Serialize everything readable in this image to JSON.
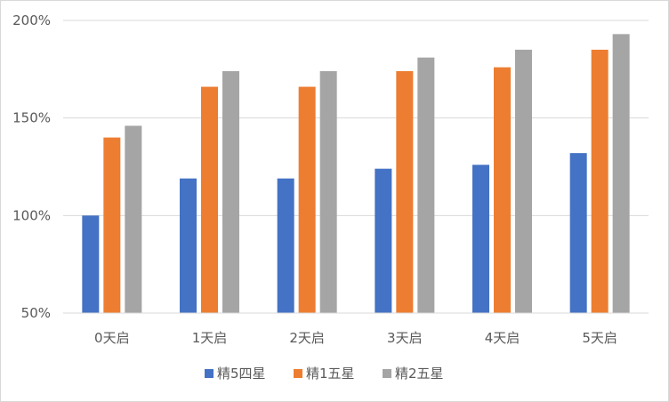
{
  "chart_data": {
    "type": "bar",
    "categories": [
      "0天启",
      "1天启",
      "2天启",
      "3天启",
      "4天启",
      "5天启"
    ],
    "series": [
      {
        "name": "精5四星",
        "color": "#4472c4",
        "values": [
          100,
          119,
          119,
          124,
          126,
          132
        ]
      },
      {
        "name": "精1五星",
        "color": "#ed7d31",
        "values": [
          140,
          166,
          166,
          174,
          176,
          185
        ]
      },
      {
        "name": "精2五星",
        "color": "#a5a5a5",
        "values": [
          146,
          174,
          174,
          181,
          185,
          193
        ]
      }
    ],
    "ylim": [
      50,
      200
    ],
    "yticks": [
      50,
      100,
      150,
      200
    ],
    "ytick_labels": [
      "50%",
      "100%",
      "150%",
      "200%"
    ],
    "grid": true,
    "legend_position": "bottom"
  }
}
